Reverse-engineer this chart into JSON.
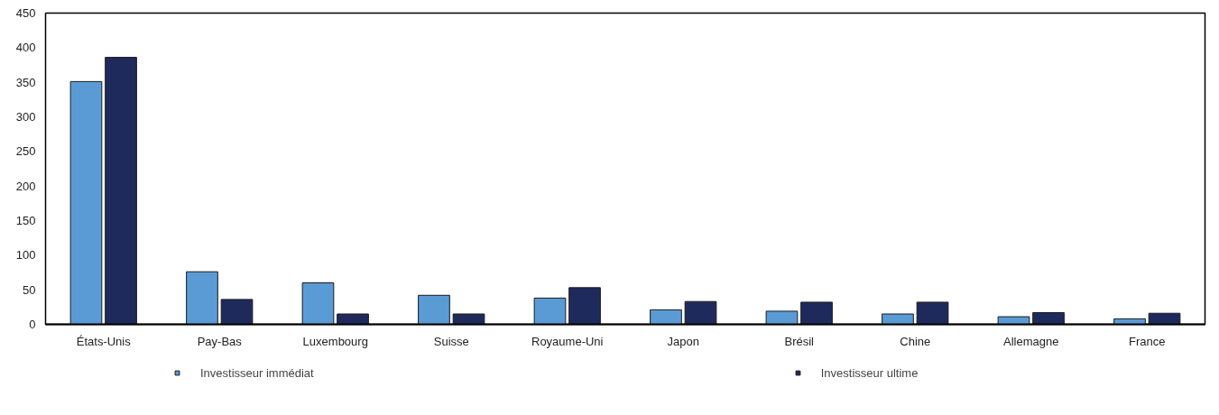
{
  "chart_data": {
    "type": "bar",
    "categories": [
      "États-Unis",
      "Pay-Bas",
      "Luxembourg",
      "Suisse",
      "Royaume-Uni",
      "Japon",
      "Brésil",
      "Chine",
      "Allemagne",
      "France"
    ],
    "series": [
      {
        "name": "Investisseur immédiat",
        "color": "#5b9bd5",
        "values": [
          351,
          76,
          60,
          42,
          38,
          21,
          19,
          15,
          11,
          8
        ]
      },
      {
        "name": "Investisseur ultime",
        "color": "#1f2a5c",
        "values": [
          386,
          36,
          15,
          15,
          53,
          33,
          32,
          32,
          17,
          16
        ]
      }
    ],
    "ylim": [
      0,
      450
    ],
    "yticks": [
      0,
      50,
      100,
      150,
      200,
      250,
      300,
      350,
      400,
      450
    ],
    "grid": false,
    "legend": "bottom"
  }
}
